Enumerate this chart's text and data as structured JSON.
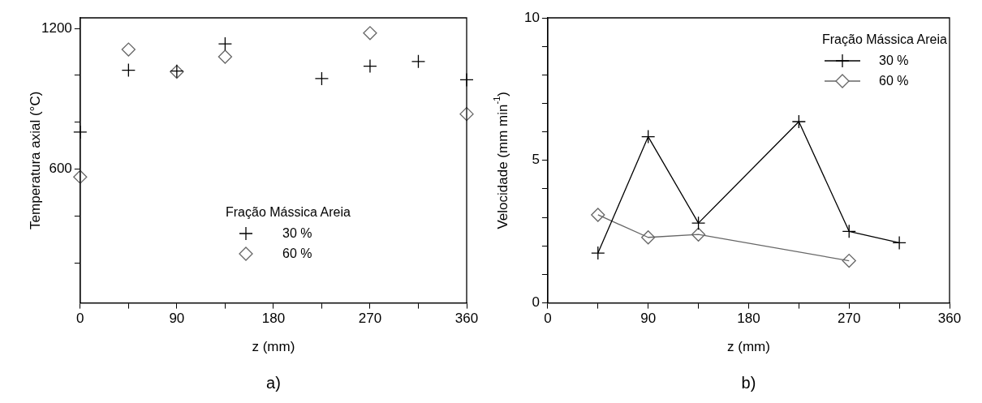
{
  "chart_data": [
    {
      "type": "scatter",
      "xlabel": "z (mm)",
      "ylabel": "Temperatura axial (°C)",
      "legend_title": "Fração Mássica Areia",
      "legend": "bottom",
      "annotations": [
        "a)"
      ],
      "xlim": [
        0,
        360
      ],
      "xticks": [
        0,
        {
          "value": 45,
          "label": null
        },
        90,
        {
          "value": 135,
          "label": null
        },
        180,
        {
          "value": 225,
          "label": null
        },
        270,
        {
          "value": 315,
          "label": null
        },
        360
      ],
      "ylim": [
        30,
        1245
      ],
      "yticks": [
        {
          "value": 200,
          "label": null
        },
        {
          "value": 400,
          "label": null
        },
        600,
        {
          "value": 800,
          "label": null
        },
        {
          "value": 1000,
          "label": null
        },
        1200
      ],
      "series": [
        {
          "name": "30 %",
          "color": "#000000",
          "marker": "cross",
          "x": [
            0,
            45,
            90,
            135,
            225,
            270,
            315,
            360
          ],
          "values": [
            758,
            1022,
            1018,
            1134,
            986,
            1039,
            1059,
            981
          ]
        },
        {
          "name": "60 %",
          "color": "#666666",
          "marker": "diamond",
          "x": [
            0,
            45,
            90,
            135,
            270,
            360
          ],
          "values": [
            567,
            1110,
            1015,
            1079,
            1180,
            835
          ]
        }
      ]
    },
    {
      "type": "line",
      "xlabel": "z (mm)",
      "ylabel": "Velocidade (mm min$^{-1}$)",
      "legend_title": "Fração Mássica Areia",
      "legend": "top right",
      "annotations": [
        "b)"
      ],
      "line_style": "solid",
      "xlim": [
        0,
        360
      ],
      "xticks": [
        0,
        {
          "value": 45,
          "label": null
        },
        90,
        {
          "value": 135,
          "label": null
        },
        180,
        {
          "value": 225,
          "label": null
        },
        270,
        {
          "value": 315,
          "label": null
        },
        360
      ],
      "ylim": [
        0,
        10
      ],
      "yticks": [
        0,
        {
          "value": 1,
          "label": null
        },
        {
          "value": 2,
          "label": null
        },
        {
          "value": 3,
          "label": null
        },
        {
          "value": 4,
          "label": null
        },
        5,
        {
          "value": 6,
          "label": null
        },
        {
          "value": 7,
          "label": null
        },
        {
          "value": 8,
          "label": null
        },
        {
          "value": 9,
          "label": null
        },
        10
      ],
      "series": [
        {
          "name": "30 %",
          "color": "#000000",
          "marker": "cross",
          "x": [
            45,
            90,
            135,
            225,
            270,
            315
          ],
          "values": [
            1.75,
            5.83,
            2.8,
            6.36,
            2.51,
            2.11
          ]
        },
        {
          "name": "60 %",
          "color": "#666666",
          "marker": "diamond",
          "x": [
            45,
            90,
            135,
            270
          ],
          "values": [
            3.09,
            2.3,
            2.4,
            1.48
          ]
        }
      ]
    }
  ]
}
